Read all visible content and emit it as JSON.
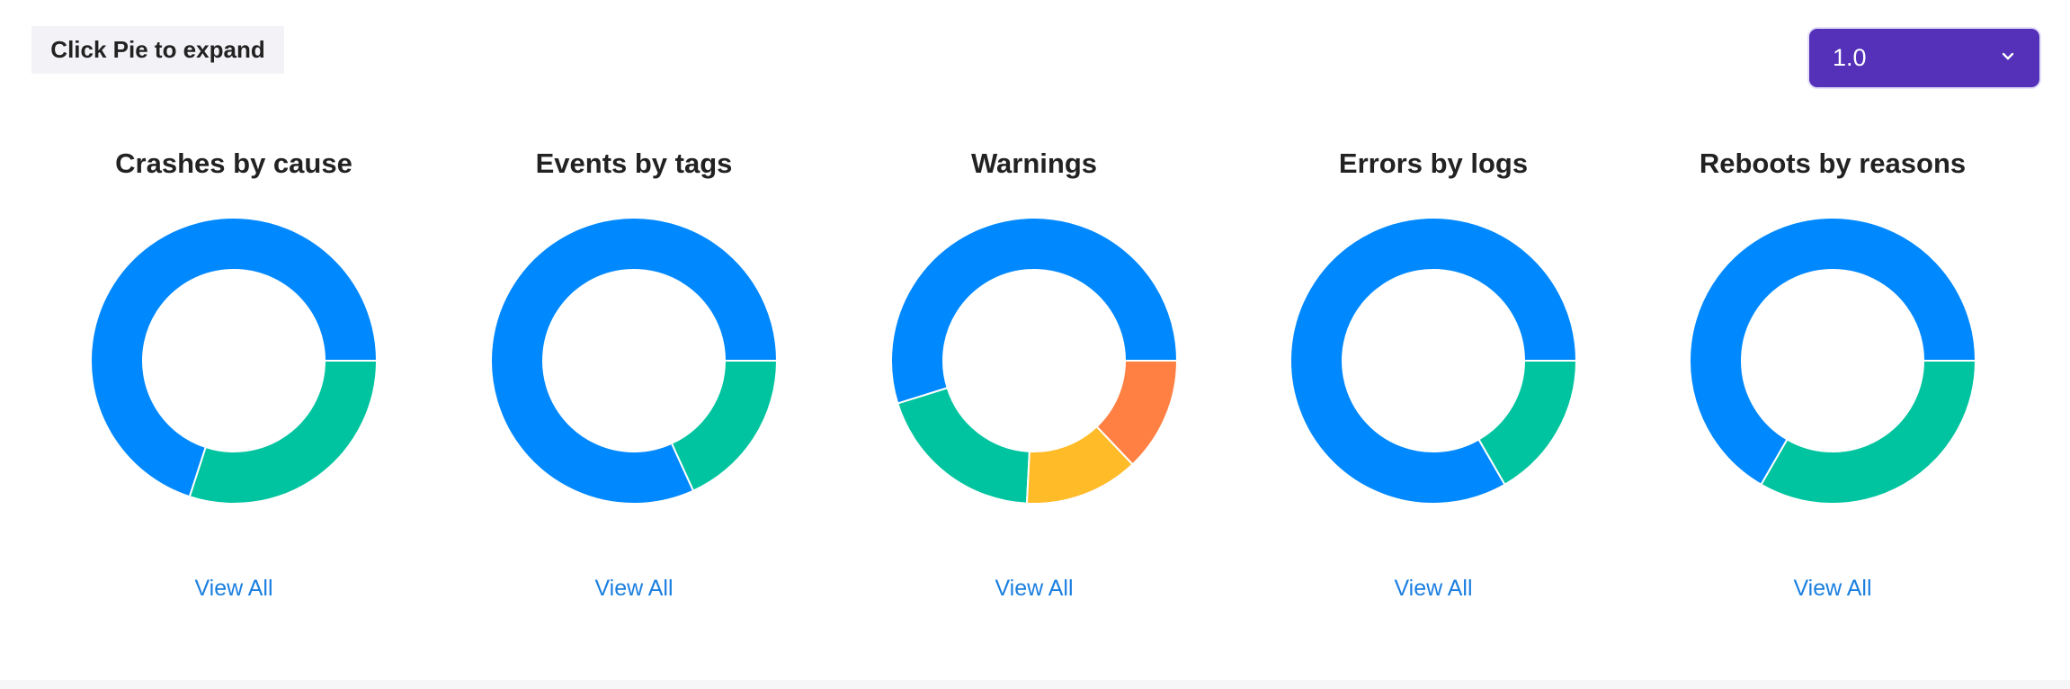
{
  "header": {
    "hint": "Click Pie to expand",
    "version_select": {
      "value": "1.0",
      "icon": "chevron-down-icon"
    }
  },
  "colors": {
    "blue": "#0088FE",
    "green": "#00C49F",
    "yellow": "#FFBB28",
    "orange": "#FF8042",
    "accent": "#5530B8",
    "link": "#1A7FE0"
  },
  "view_all_label": "View All",
  "chart_data": [
    {
      "type": "pie",
      "donut": true,
      "title": "Crashes by cause",
      "values": [
        7,
        3
      ],
      "colors": [
        "#0088FE",
        "#00C49F"
      ]
    },
    {
      "type": "pie",
      "donut": true,
      "title": "Events by tags",
      "values": [
        9,
        2
      ],
      "colors": [
        "#0088FE",
        "#00C49F"
      ]
    },
    {
      "type": "pie",
      "donut": true,
      "title": "Warnings",
      "values": [
        17,
        6,
        4,
        4
      ],
      "colors": [
        "#0088FE",
        "#00C49F",
        "#FFBB28",
        "#FF8042"
      ]
    },
    {
      "type": "pie",
      "donut": true,
      "title": "Errors by logs",
      "values": [
        5,
        1
      ],
      "colors": [
        "#0088FE",
        "#00C49F"
      ]
    },
    {
      "type": "pie",
      "donut": true,
      "title": "Reboots by reasons",
      "values": [
        2,
        1
      ],
      "colors": [
        "#0088FE",
        "#00C49F"
      ]
    }
  ]
}
